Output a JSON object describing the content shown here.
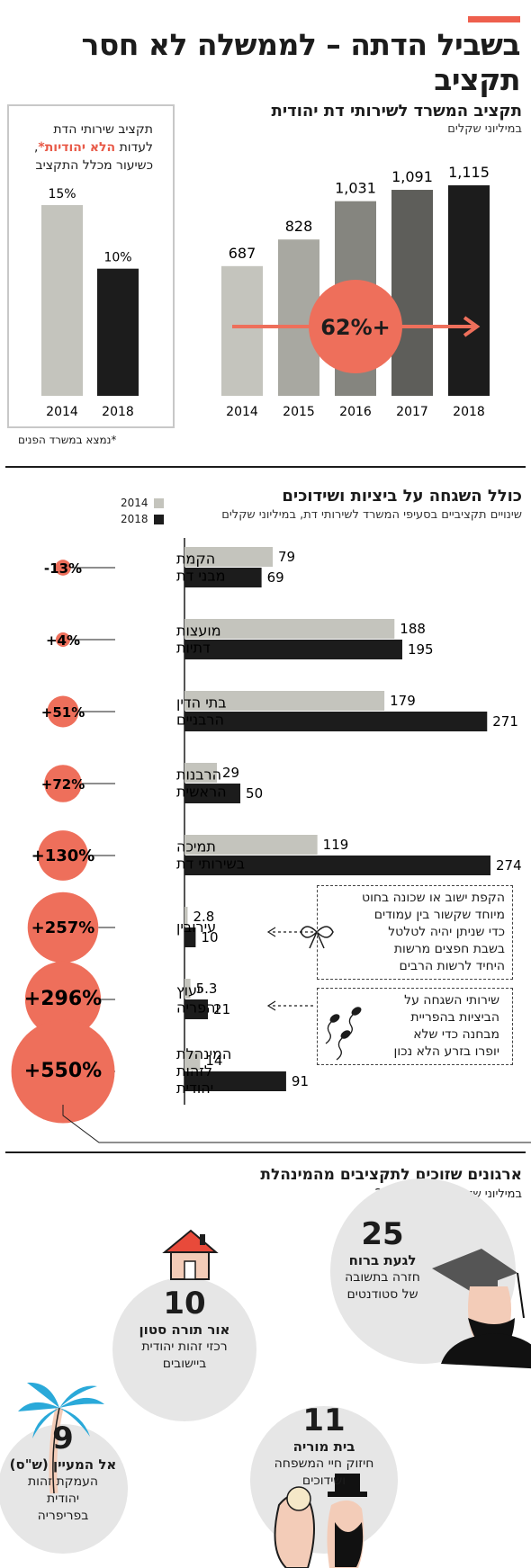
{
  "header": {
    "title": "בשביל הדתה – לממשלה לא חסר תקציב",
    "accent": "#ee5f4d"
  },
  "colors": {
    "light": "#c4c4bd",
    "dark": "#1c1c1c",
    "accent": "#ee6f5b"
  },
  "left_box": {
    "line1": "תקציב שירותי הדת",
    "line2_pre": "לעדות ",
    "line2_hl": "הלא יהודיות*",
    "line2_post": ",",
    "line3": "כשיעור מכלל התקציב",
    "footnote": "*נמצא במשרד הפנים"
  },
  "chart_data": [
    {
      "type": "bar",
      "title": "תקציב שירותי הדת לעדות הלא יהודיות*, כשיעור מכלל התקציב",
      "categories": [
        "2014",
        "2018"
      ],
      "values": [
        15,
        10
      ],
      "value_labels": [
        "15%",
        "10%"
      ],
      "ylim": [
        0,
        15
      ]
    },
    {
      "type": "bar",
      "title": "תקציב המשרד לשירותי דת יהודית",
      "subtitle": "במיליוני שקלים",
      "categories": [
        "2014",
        "2015",
        "2016",
        "2017",
        "2018"
      ],
      "values": [
        687,
        828,
        1031,
        1091,
        1115
      ],
      "value_labels": [
        "687",
        "828",
        "1,031",
        "1,091",
        "1,115"
      ],
      "annotation": "+62%",
      "ylim": [
        0,
        1115
      ]
    },
    {
      "type": "bar",
      "title": "כולל השגחה על ביציות ושידוכים",
      "subtitle": "שינויים תקציביים בסעיפי המשרד לשירותי דת, במיליוני שקלים",
      "legend": [
        "2014",
        "2018"
      ],
      "series": [
        {
          "name": "2014"
        },
        {
          "name": "2018"
        }
      ],
      "items": [
        {
          "label1": "הקמת",
          "label2": "מבני דת",
          "label3": "",
          "v2014": 79,
          "v2018": 69,
          "v2014_label": "79",
          "v2018_label": "69",
          "change": "-13%",
          "pct": 13
        },
        {
          "label1": "מועצות",
          "label2": "דתיות",
          "label3": "",
          "v2014": 188,
          "v2018": 195,
          "v2014_label": "188",
          "v2018_label": "195",
          "change": "+4%",
          "pct": 4
        },
        {
          "label1": "בתי הדין",
          "label2": "הרבניים",
          "label3": "",
          "v2014": 179,
          "v2018": 271,
          "v2014_label": "179",
          "v2018_label": "271",
          "change": "+51%",
          "pct": 51
        },
        {
          "label1": "הרבנות",
          "label2": "הראשית",
          "label3": "",
          "v2014": 29,
          "v2018": 50,
          "v2014_label": "29",
          "v2018_label": "50",
          "change": "+72%",
          "pct": 72
        },
        {
          "label1": "תמיכה",
          "label2": "בשירותי דת",
          "label3": "",
          "v2014": 119,
          "v2018": 274,
          "v2014_label": "119",
          "v2018_label": "274",
          "change": "+130%",
          "pct": 130
        },
        {
          "label1": "עירובין",
          "label2": "",
          "label3": "",
          "v2014": 2.8,
          "v2018": 10,
          "v2014_label": "2.8",
          "v2018_label": "10",
          "change": "+257%",
          "pct": 257
        },
        {
          "label1": "ייעוץ",
          "label2": "והפריה",
          "label3": "",
          "v2014": 5.3,
          "v2018": 21,
          "v2014_label": "5.3",
          "v2018_label": "21",
          "change": "+296%",
          "pct": 296
        },
        {
          "label1": "המינהלת",
          "label2": "לזהות",
          "label3": "יהודית",
          "v2014": 14,
          "v2018": 91,
          "v2014_label": "14",
          "v2018_label": "91",
          "change": "+550%",
          "pct": 550
        }
      ],
      "xlim": [
        0,
        274
      ]
    }
  ],
  "notes": {
    "eruv": [
      "הקפת ישוב או שכונה בחוט",
      "מיוחד שקשור בין עמודים",
      "כדי שניתן יהיה לטלטל",
      "בשבת חפצים מרשות",
      "היחיד לרשות הרבים"
    ],
    "eruv_icon": "ribbon-icon",
    "fertility": [
      "שירותי השגחה על",
      "הביציות בהפריית",
      "מבחנה כדי שלא",
      "יופרו בזרע הלא נכון"
    ],
    "fertility_icon": "sperm-icon"
  },
  "orgs": {
    "title": "ארגונים שזוכים לתקציבים מהמינהלת",
    "subtitle": "במיליוני שקלים, 2019–2017",
    "items": [
      {
        "num": "25",
        "name": "לגעת ברוח",
        "desc1": "חזרה בתשובה",
        "desc2": "של סטודנטים",
        "desc3": "",
        "icon": "student-icon"
      },
      {
        "num": "10",
        "name": "אור תורה סטון",
        "desc1": "רכזי זהות יהודית",
        "desc2": "ביישובים",
        "desc3": "",
        "icon": "house-icon"
      },
      {
        "num": "11",
        "name": "בית מוריה",
        "desc1": "חיזוק חיי המשפחה",
        "desc2": "ושידוכים",
        "desc3": "",
        "icon": "couple-icon"
      },
      {
        "num": "9",
        "name": "אל המעיין (ש\"ס)",
        "desc1": "העמקת זהות",
        "desc2": "יהודית",
        "desc3": "בפריפריה",
        "icon": "palm-tree-icon"
      }
    ]
  }
}
